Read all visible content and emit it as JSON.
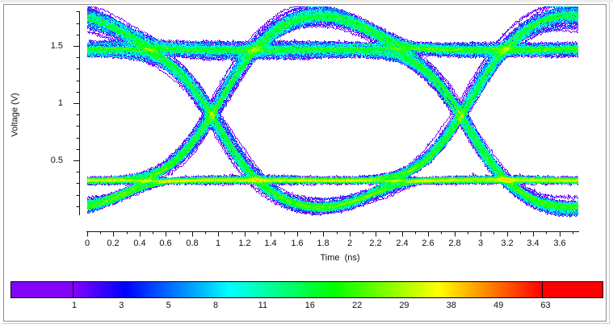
{
  "chart_data": {
    "type": "heatmap",
    "subtype": "eye_diagram",
    "title": "",
    "xlabel": "Time  (ns)",
    "ylabel": "Voltage (V)",
    "x_unit": "ns",
    "y_unit": "V",
    "x_range": [
      0,
      3.75
    ],
    "y_range": [
      0,
      1.8
    ],
    "x_major_tick_step": 0.2,
    "x_minor_tick_step": 0.1,
    "y_major_tick_step": 0.5,
    "y_minor_tick_step": 0.1,
    "grid": "off",
    "legend": "colorbar-bottom",
    "x_tick_labels": [
      "0",
      "0.2",
      "0.4",
      "0.6",
      "0.8",
      "1",
      "1.2",
      "1.4",
      "1.6",
      "1.8",
      "2",
      "2.2",
      "2.4",
      "2.6",
      "2.8",
      "3",
      "3.2",
      "3.4",
      "3.6"
    ],
    "y_ticks": [
      {
        "label": "0.5",
        "value": 0.5
      },
      {
        "label": "1",
        "value": 1.0
      },
      {
        "label": "1.5",
        "value": 1.5
      }
    ],
    "signal": {
      "bit_period_ns": 1.9,
      "crossing_times_ns": [
        0.95,
        2.85
      ],
      "crossing_level_v": 0.9,
      "low_level_v": 0.325,
      "high_level_v": 1.48,
      "overshoot_peak_v": 1.77,
      "undershoot_min_v": 0.09,
      "rise_time_ns": 0.75,
      "overshoot_peak_delay_ns": 0.8,
      "jitter_rms_ns": 0.026,
      "noise_rms_v": 0.012
    },
    "density_colorbar": {
      "scale": "log",
      "tick_values": [
        1,
        3,
        5,
        8,
        11,
        16,
        22,
        29,
        38,
        49,
        63
      ],
      "tick_labels": [
        "1",
        "3",
        "5",
        "8",
        "11",
        "16",
        "22",
        "29",
        "38",
        "49",
        "63"
      ],
      "max_count": 63,
      "under_color": "#8205fa",
      "over_color": "#ff0000",
      "gradient_stops": [
        {
          "color": "#8205fa",
          "pos": 0.0
        },
        {
          "color": "#0000ff",
          "pos": 0.111
        },
        {
          "color": "#00ffff",
          "pos": 0.333
        },
        {
          "color": "#00ff00",
          "pos": 0.556
        },
        {
          "color": "#ffff00",
          "pos": 0.778
        },
        {
          "color": "#ff8000",
          "pos": 0.889
        },
        {
          "color": "#ff0000",
          "pos": 1.0
        }
      ]
    },
    "render": {
      "num_traces": 320,
      "seed": 12345
    }
  },
  "axis_color": "#111111",
  "background_color": "#ffffff"
}
